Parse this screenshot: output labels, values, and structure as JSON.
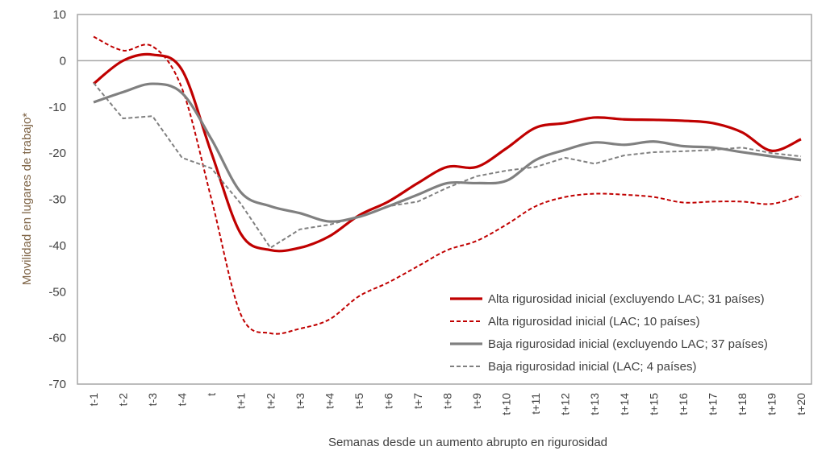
{
  "chart_data": {
    "type": "line",
    "title": "",
    "xlabel": "Semanas desde un aumento abrupto en rigurosidad",
    "ylabel": "Movilidad en lugares de trabajo*",
    "ylim": [
      -70,
      10
    ],
    "yticks": [
      10,
      0,
      -10,
      -20,
      -30,
      -40,
      -50,
      -60,
      -70
    ],
    "grid": false,
    "legend_position": "bottom-right",
    "categories": [
      "t-1",
      "t-2",
      "t-3",
      "t-4",
      "t",
      "t+1",
      "t+2",
      "t+3",
      "t+4",
      "t+5",
      "t+6",
      "t+7",
      "t+8",
      "t+9",
      "t+10",
      "t+11",
      "t+12",
      "t+13",
      "t+14",
      "t+15",
      "t+16",
      "t+17",
      "t+18",
      "t+19",
      "t+20"
    ],
    "series": [
      {
        "name": "Alta rigurosidad inicial (excluyendo LAC; 31 países)",
        "color": "#C00000",
        "style": "solid",
        "smooth": true,
        "values": [
          -5,
          0,
          1.3,
          -2,
          -20,
          -37.5,
          -41,
          -40.5,
          -38,
          -33.5,
          -30.5,
          -26.5,
          -23,
          -23,
          -19,
          -14.5,
          -13.5,
          -12.3,
          -12.7,
          -12.8,
          -13,
          -13.5,
          -15.5,
          -19.5,
          -17
        ]
      },
      {
        "name": "Alta rigurosidad inicial (LAC; 10 países)",
        "color": "#C00000",
        "style": "dashed",
        "smooth": true,
        "values": [
          5.2,
          2.2,
          3.1,
          -6,
          -30,
          -55,
          -59,
          -58,
          -56,
          -51,
          -48,
          -44.5,
          -41,
          -39,
          -35.5,
          -31.5,
          -29.5,
          -28.8,
          -29,
          -29.5,
          -30.7,
          -30.5,
          -30.5,
          -31,
          -29.2
        ]
      },
      {
        "name": "Baja rigurosidad inicial (excluyendo LAC; 37 países)",
        "color": "#808080",
        "style": "solid",
        "smooth": true,
        "values": [
          -9,
          -6.8,
          -5,
          -7,
          -17,
          -28.5,
          -31.5,
          -33,
          -34.8,
          -33.8,
          -31.5,
          -29,
          -26.5,
          -26.5,
          -26,
          -21.5,
          -19.3,
          -17.7,
          -18.2,
          -17.5,
          -18.5,
          -18.8,
          -19.8,
          -20.7,
          -21.5
        ]
      },
      {
        "name": "Baja rigurosidad inicial (LAC; 4 países)",
        "color": "#808080",
        "style": "dashed",
        "smooth": false,
        "values": [
          -4.8,
          -12.5,
          -12,
          -21,
          -23.3,
          -31,
          -40.5,
          -36.5,
          -35.5,
          -33.8,
          -31.5,
          -30.5,
          -27.5,
          -25,
          -23.8,
          -23,
          -21,
          -22.3,
          -20.5,
          -19.8,
          -19.6,
          -19.3,
          -18.8,
          -20,
          -20.7
        ]
      }
    ]
  }
}
